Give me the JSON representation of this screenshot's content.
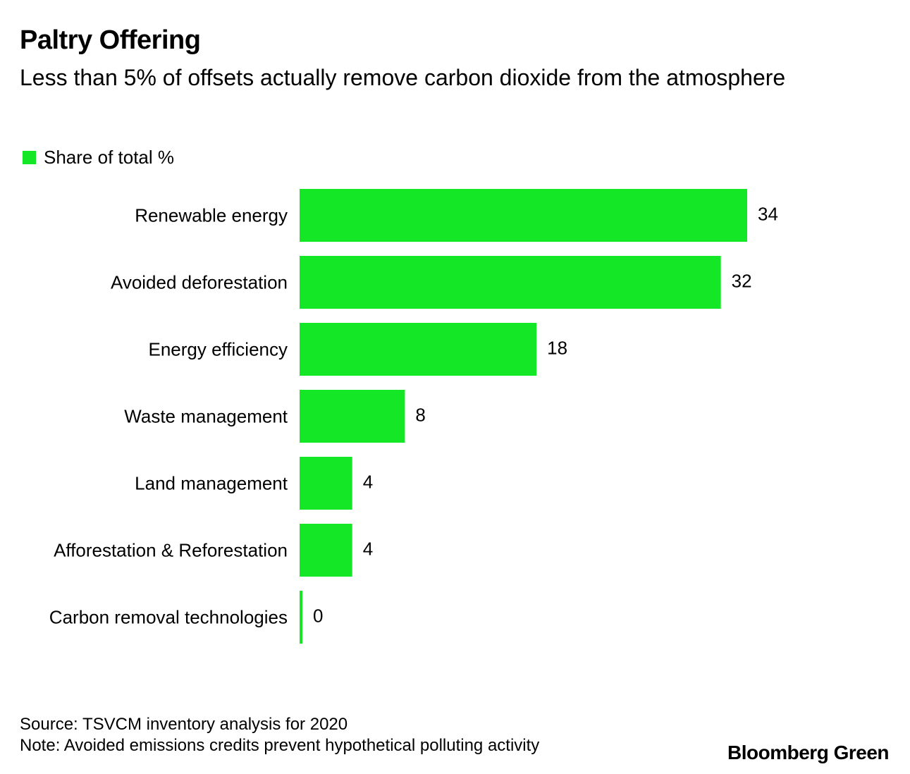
{
  "title": "Paltry Offering",
  "subtitle": "Less than 5% of offsets actually remove carbon dioxide from the atmosphere",
  "footer": {
    "source": "Source: TSVCM inventory analysis for 2020",
    "note": "Note: Avoided emissions credits prevent hypothetical polluting activity",
    "logo": "Bloomberg Green"
  },
  "chart_data": {
    "type": "bar",
    "orientation": "horizontal",
    "title": "Paltry Offering",
    "subtitle": "Less than 5% of offsets actually remove carbon dioxide from the atmosphere",
    "legend": {
      "position": "top-left",
      "entries": [
        "Share of total %"
      ]
    },
    "categories": [
      "Renewable energy",
      "Avoided deforestation",
      "Energy efficiency",
      "Waste management",
      "Land management",
      "Afforestation & Reforestation",
      "Carbon removal technologies"
    ],
    "series": [
      {
        "name": "Share of total %",
        "color": "#14e826",
        "values": [
          34,
          32,
          18,
          8,
          4,
          4,
          0
        ]
      }
    ],
    "data_labels": [
      "34",
      "32",
      "18",
      "8",
      "4",
      "4",
      "0"
    ],
    "xlim": [
      0,
      34
    ],
    "grid": false
  }
}
